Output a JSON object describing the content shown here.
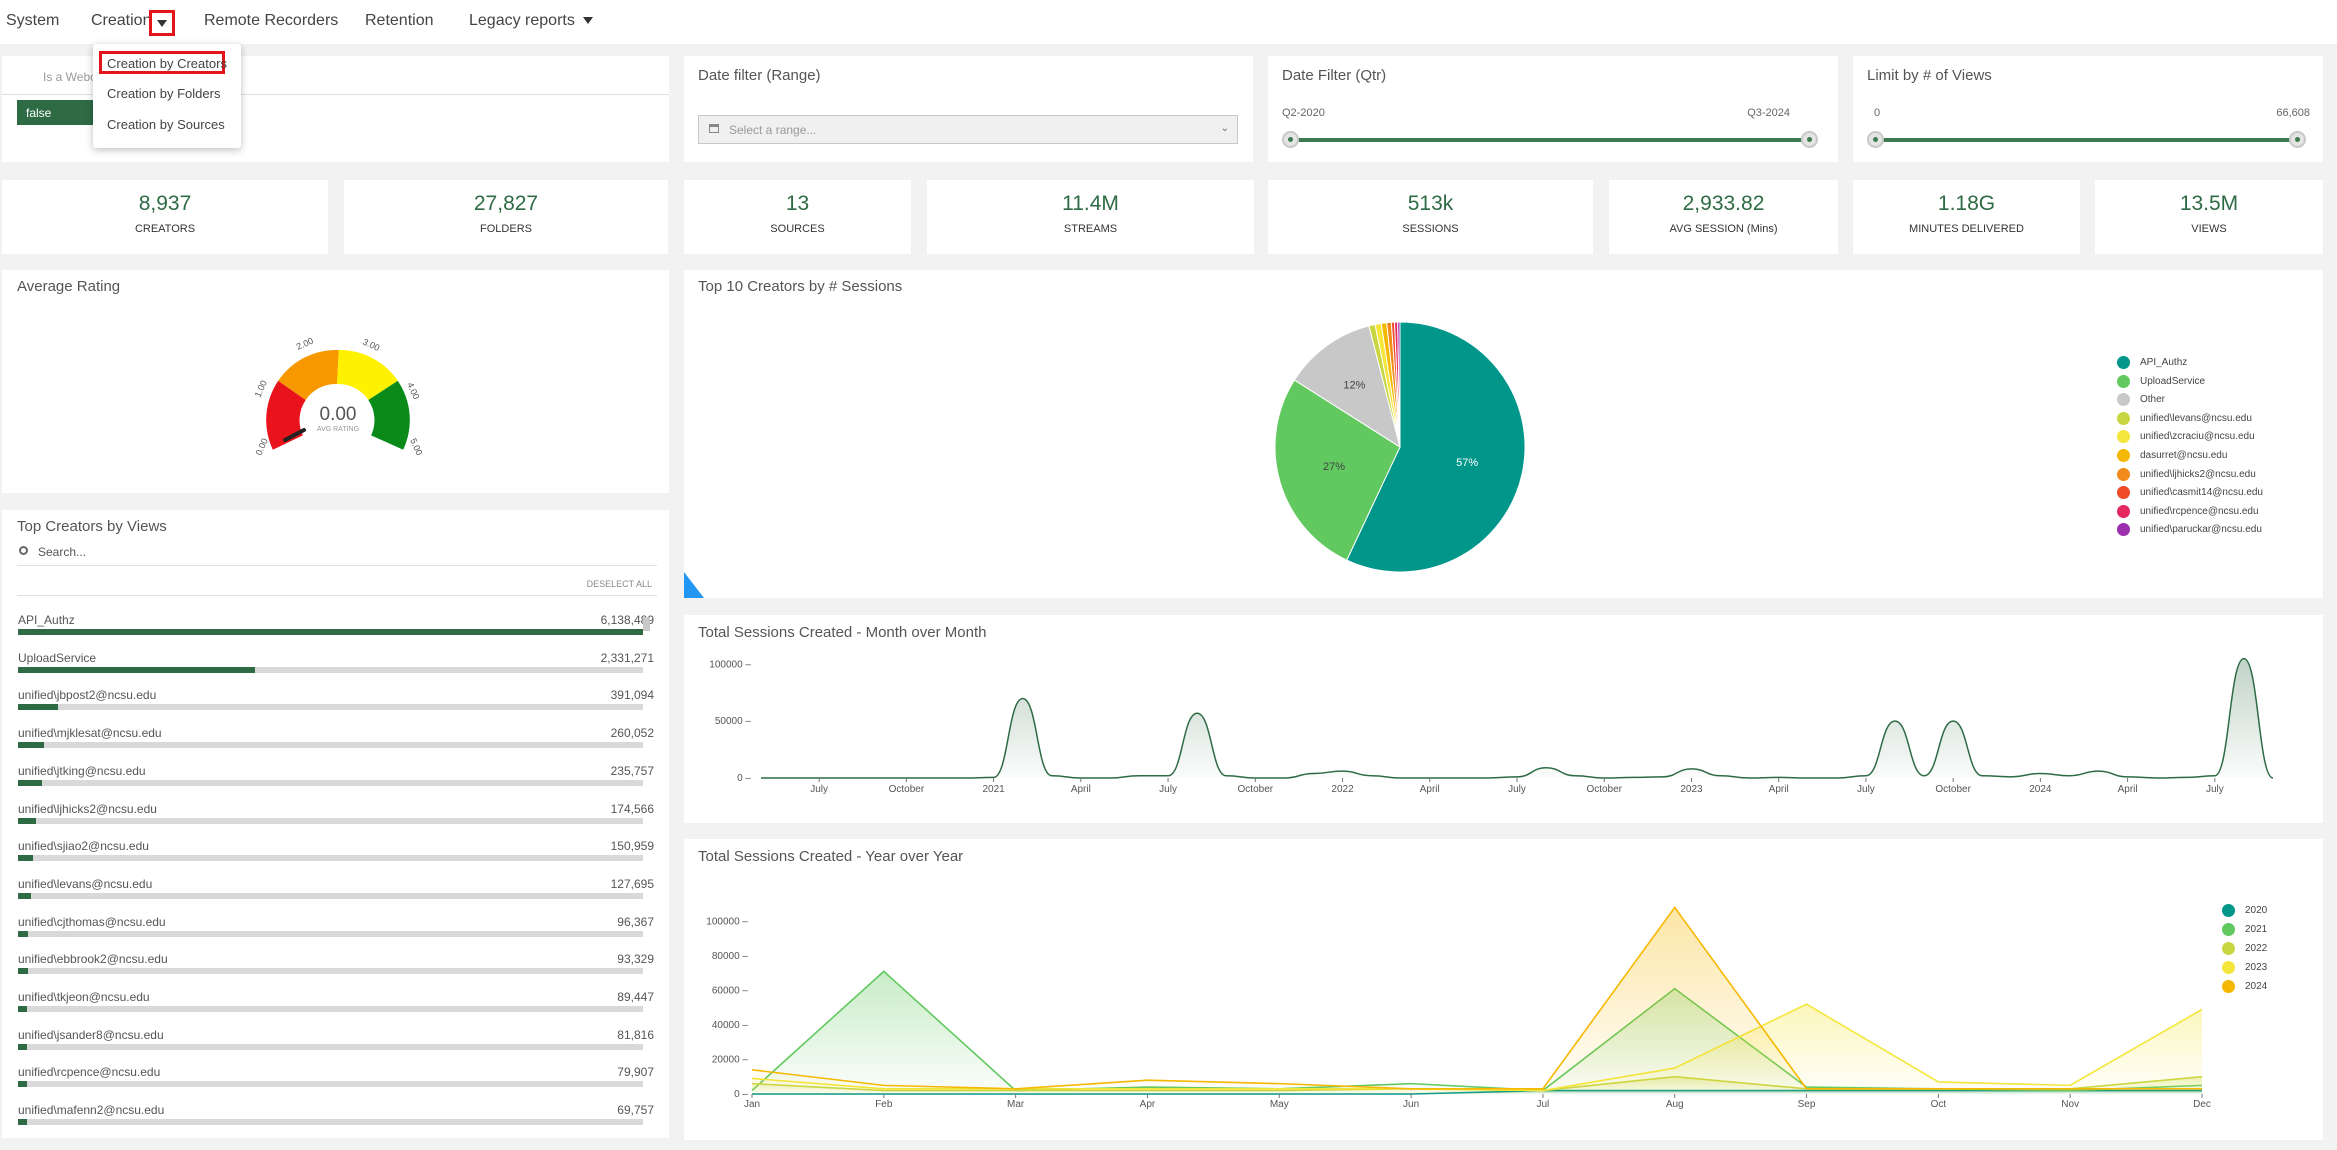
{
  "nav": {
    "items": [
      "System",
      "Creation",
      "Remote Recorders",
      "Retention",
      "Legacy reports"
    ],
    "dropdown": [
      "Creation by Creators",
      "Creation by Folders",
      "Creation by Sources"
    ]
  },
  "filters": {
    "webcast": {
      "label": "Is a Webcast",
      "value": "false"
    },
    "date_range": {
      "title": "Date filter (Range)",
      "placeholder": "Select a range..."
    },
    "date_qtr": {
      "title": "Date Filter (Qtr)",
      "min": "Q2-2020",
      "max": "Q3-2024"
    },
    "views_limit": {
      "title": "Limit by # of Views",
      "min": "0",
      "max": "66,608"
    }
  },
  "kpis": [
    {
      "value": "8,937",
      "label": "CREATORS"
    },
    {
      "value": "27,827",
      "label": "FOLDERS"
    },
    {
      "value": "13",
      "label": "SOURCES"
    },
    {
      "value": "11.4M",
      "label": "STREAMS"
    },
    {
      "value": "513k",
      "label": "SESSIONS"
    },
    {
      "value": "2,933.82",
      "label": "AVG SESSION (Mins)"
    },
    {
      "value": "1.18G",
      "label": "MINUTES DELIVERED"
    },
    {
      "value": "13.5M",
      "label": "VIEWS"
    }
  ],
  "rating": {
    "title": "Average Rating",
    "value": "0.00",
    "caption": "AVG RATING",
    "ticks": [
      "0.00",
      "1.00",
      "2.00",
      "3.00",
      "4.00",
      "5.00"
    ],
    "level": 0
  },
  "top_creators": {
    "title": "Top Creators by Views",
    "search_placeholder": "Search...",
    "deselect": "DESELECT ALL",
    "max": 6138489,
    "rows": [
      {
        "name": "API_Authz",
        "value": "6,138,489",
        "n": 6138489
      },
      {
        "name": "UploadService",
        "value": "2,331,271",
        "n": 2331271
      },
      {
        "name": "unified\\jbpost2@ncsu.edu",
        "value": "391,094",
        "n": 391094
      },
      {
        "name": "unified\\mjklesat@ncsu.edu",
        "value": "260,052",
        "n": 260052
      },
      {
        "name": "unified\\jtking@ncsu.edu",
        "value": "235,757",
        "n": 235757
      },
      {
        "name": "unified\\ljhicks2@ncsu.edu",
        "value": "174,566",
        "n": 174566
      },
      {
        "name": "unified\\sjiao2@ncsu.edu",
        "value": "150,959",
        "n": 150959
      },
      {
        "name": "unified\\levans@ncsu.edu",
        "value": "127,695",
        "n": 127695
      },
      {
        "name": "unified\\cjthomas@ncsu.edu",
        "value": "96,367",
        "n": 96367
      },
      {
        "name": "unified\\ebbrook2@ncsu.edu",
        "value": "93,329",
        "n": 93329
      },
      {
        "name": "unified\\tkjeon@ncsu.edu",
        "value": "89,447",
        "n": 89447
      },
      {
        "name": "unified\\jsander8@ncsu.edu",
        "value": "81,816",
        "n": 81816
      },
      {
        "name": "unified\\rcpence@ncsu.edu",
        "value": "79,907",
        "n": 79907
      },
      {
        "name": "unified\\mafenn2@ncsu.edu",
        "value": "69,757",
        "n": 69757
      }
    ]
  },
  "colors": {
    "green_dark": "#2e6b45",
    "teal": "#00968a",
    "light_green": "#61c95f",
    "grey": "#c8c8c8"
  },
  "chart_data": [
    {
      "type": "pie",
      "title": "Top 10 Creators by # Sessions",
      "slices": [
        {
          "label": "API_Authz",
          "value": 57,
          "color": "#00968a",
          "text": "57%"
        },
        {
          "label": "UploadService",
          "value": 27,
          "color": "#61c95f",
          "text": "27%"
        },
        {
          "label": "Other",
          "value": 12,
          "color": "#c8c8c8",
          "text": "12%"
        },
        {
          "label": "unified\\levans@ncsu.edu",
          "value": 0.8,
          "color": "#c9d642",
          "text": ""
        },
        {
          "label": "unified\\zcraciu@ncsu.edu",
          "value": 0.8,
          "color": "#f4e63a",
          "text": ""
        },
        {
          "label": "dasurret@ncsu.edu",
          "value": 0.7,
          "color": "#f5b800",
          "text": ""
        },
        {
          "label": "unified\\ljhicks2@ncsu.edu",
          "value": 0.6,
          "color": "#f28a1a",
          "text": ""
        },
        {
          "label": "unified\\casmit14@ncsu.edu",
          "value": 0.4,
          "color": "#ef4b29",
          "text": ""
        },
        {
          "label": "unified\\rcpence@ncsu.edu",
          "value": 0.4,
          "color": "#e5285f",
          "text": ""
        },
        {
          "label": "unified\\paruckar@ncsu.edu",
          "value": 0.3,
          "color": "#9b2fae",
          "text": ""
        }
      ]
    },
    {
      "type": "area",
      "title": "Total Sessions Created - Month over Month",
      "ylim": [
        0,
        110000
      ],
      "yticks": [
        "100000",
        "50000",
        "0"
      ],
      "xticks": [
        "July",
        "October",
        "2021",
        "April",
        "July",
        "October",
        "2022",
        "April",
        "July",
        "October",
        "2023",
        "April",
        "July",
        "October",
        "2024",
        "April",
        "July"
      ],
      "x": [
        "2020-05",
        "2020-06",
        "2020-07",
        "2020-08",
        "2020-09",
        "2020-10",
        "2020-11",
        "2020-12",
        "2021-01",
        "2021-02",
        "2021-03",
        "2021-04",
        "2021-05",
        "2021-06",
        "2021-07",
        "2021-08",
        "2021-09",
        "2021-10",
        "2021-11",
        "2021-12",
        "2022-01",
        "2022-02",
        "2022-03",
        "2022-04",
        "2022-05",
        "2022-06",
        "2022-07",
        "2022-08",
        "2022-09",
        "2022-10",
        "2022-11",
        "2022-12",
        "2023-01",
        "2023-02",
        "2023-03",
        "2023-04",
        "2023-05",
        "2023-06",
        "2023-07",
        "2023-08",
        "2023-09",
        "2023-10",
        "2023-11",
        "2023-12",
        "2024-01",
        "2024-02",
        "2024-03",
        "2024-04",
        "2024-05",
        "2024-06",
        "2024-07",
        "2024-08",
        "2024-09"
      ],
      "values": [
        0,
        0,
        0,
        0,
        0,
        0,
        0,
        0,
        500,
        70000,
        2000,
        0,
        0,
        2000,
        2000,
        57000,
        2000,
        0,
        0,
        4000,
        6000,
        2000,
        0,
        0,
        0,
        0,
        1000,
        9000,
        2000,
        0,
        500,
        1000,
        8000,
        2000,
        0,
        500,
        0,
        0,
        2000,
        50000,
        2000,
        50000,
        2000,
        1000,
        4000,
        2000,
        6000,
        1000,
        0,
        500,
        2000,
        105000,
        0
      ]
    },
    {
      "type": "area",
      "title": "Total Sessions Created - Year over Year",
      "categories": [
        "Jan",
        "Feb",
        "Mar",
        "Apr",
        "May",
        "Jun",
        "Jul",
        "Aug",
        "Sep",
        "Oct",
        "Nov",
        "Dec"
      ],
      "ylim": [
        0,
        110000
      ],
      "yticks": [
        "100000",
        "80000",
        "60000",
        "40000",
        "20000",
        "0"
      ],
      "legend": "top-right",
      "series": [
        {
          "name": "2020",
          "color": "#00968a",
          "values": [
            0,
            0,
            0,
            0,
            0,
            0,
            2000,
            2000,
            2000,
            2000,
            2000,
            2000
          ]
        },
        {
          "name": "2021",
          "color": "#61c95f",
          "values": [
            2000,
            71000,
            2000,
            4000,
            3000,
            6000,
            2000,
            61000,
            4000,
            3000,
            2000,
            5000
          ]
        },
        {
          "name": "2022",
          "color": "#c9d642",
          "values": [
            6000,
            2000,
            2000,
            2000,
            2000,
            3000,
            2000,
            10000,
            3000,
            3000,
            3000,
            10000
          ]
        },
        {
          "name": "2023",
          "color": "#f4e63a",
          "values": [
            9000,
            3000,
            3000,
            3000,
            3000,
            3000,
            2000,
            15000,
            52000,
            7000,
            5000,
            49000
          ]
        },
        {
          "name": "2024",
          "color": "#f5b800",
          "values": [
            14000,
            5000,
            3000,
            8000,
            6000,
            3000,
            3000,
            108000,
            3000,
            3000,
            3000,
            3000
          ]
        }
      ]
    }
  ]
}
